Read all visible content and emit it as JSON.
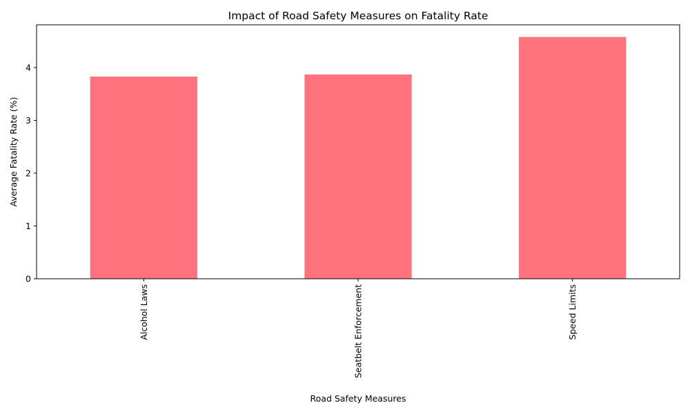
{
  "chart_data": {
    "type": "bar",
    "title": "Impact of Road Safety Measures on Fatality Rate",
    "xlabel": "Road Safety Measures",
    "ylabel": "Average Fatality Rate (%)",
    "categories": [
      "Alcohol Laws",
      "Seatbelt Enforcement",
      "Speed Limits"
    ],
    "values": [
      3.83,
      3.87,
      4.58
    ],
    "ylim": [
      0,
      4.81
    ],
    "yticks": [
      0,
      1,
      2,
      3,
      4
    ],
    "bar_color": "#ff737f",
    "grid": false,
    "legend": "none"
  }
}
